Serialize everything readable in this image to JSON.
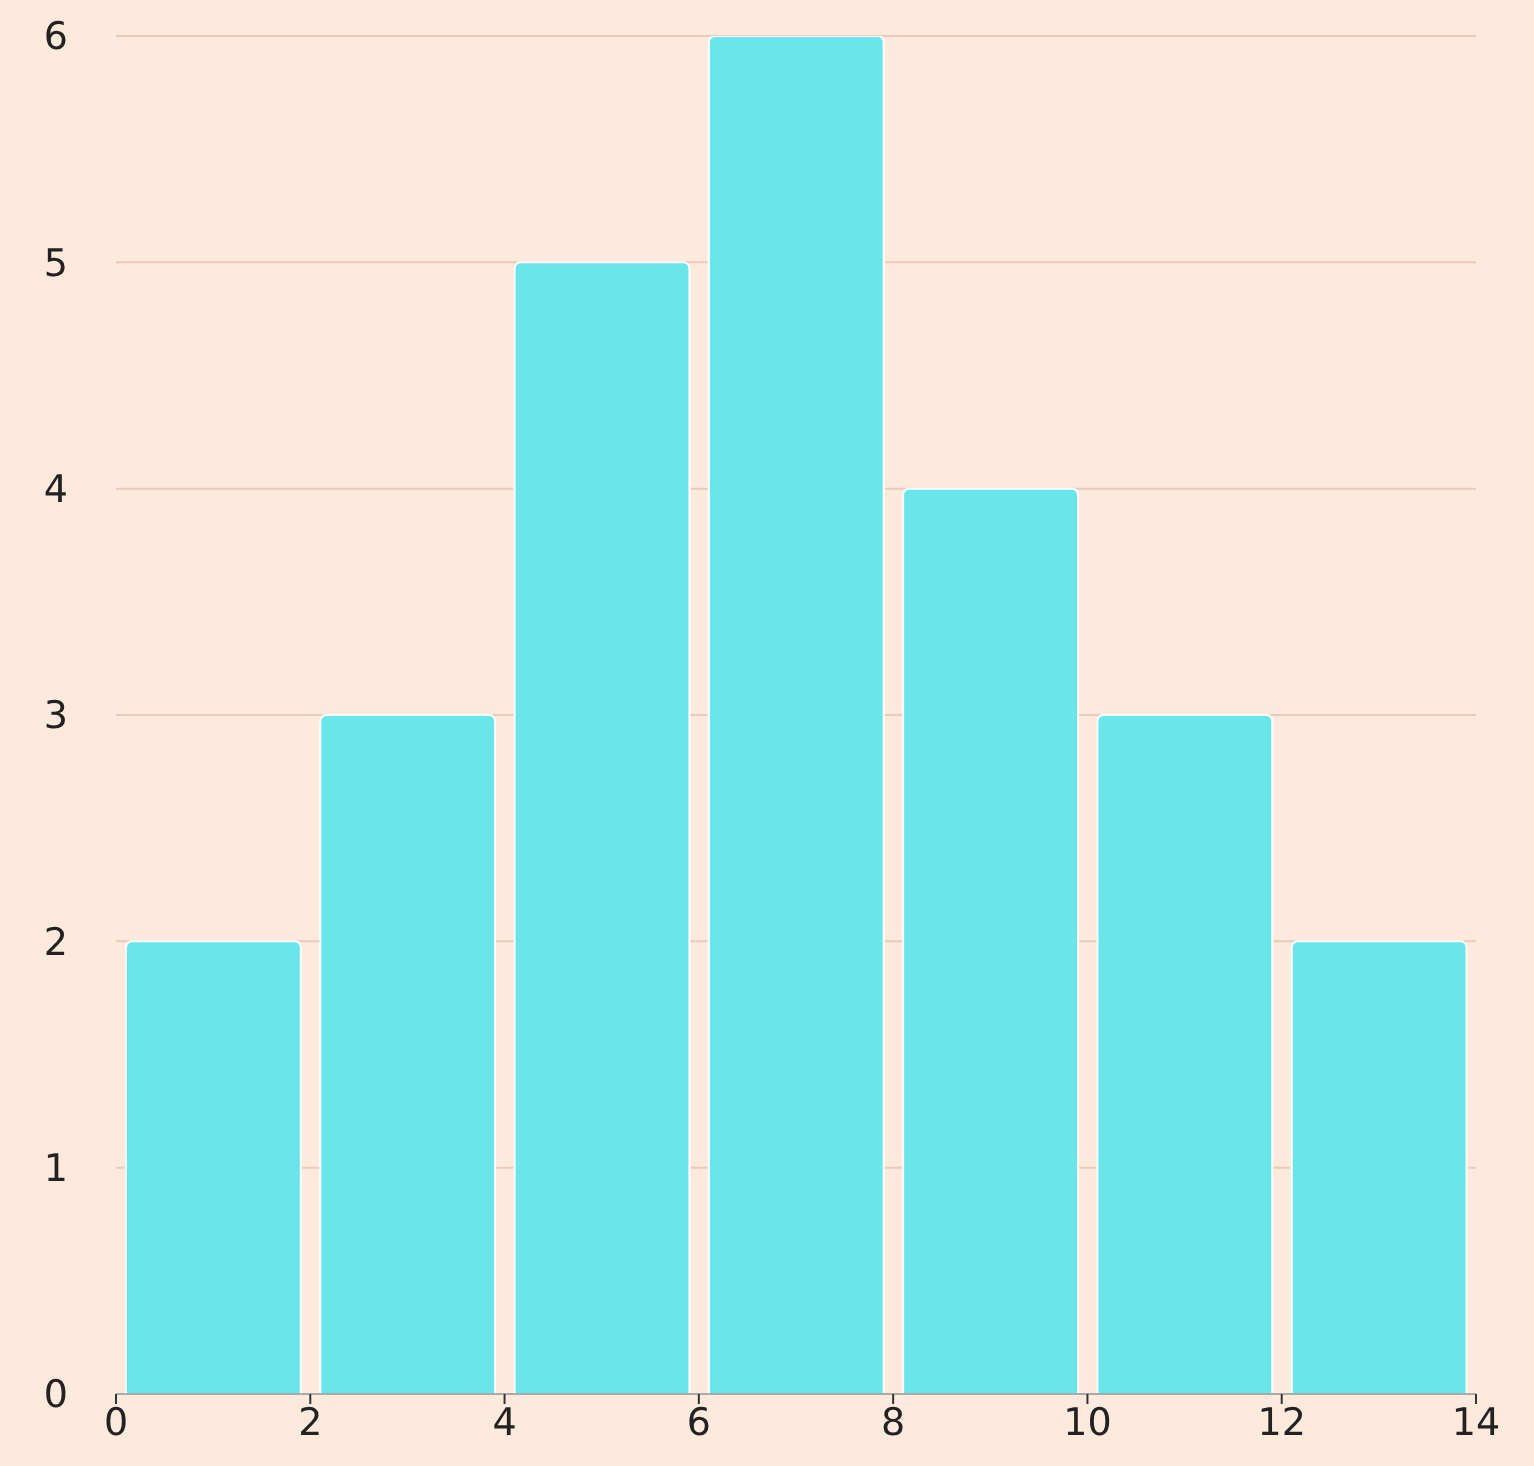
{
  "chart_data": {
    "type": "histogram",
    "bins": [
      0,
      2,
      4,
      6,
      8,
      10,
      12,
      14
    ],
    "values": [
      2,
      3,
      5,
      6,
      4,
      3,
      2
    ],
    "color": "#6ae6ea",
    "xlim": [
      0,
      14
    ],
    "xticks": [
      0,
      2,
      4,
      6,
      8,
      10,
      12,
      14
    ],
    "ylim": [
      0,
      6
    ],
    "yticks": [
      0,
      1,
      2,
      3,
      4,
      5,
      6
    ],
    "grid": "y"
  }
}
